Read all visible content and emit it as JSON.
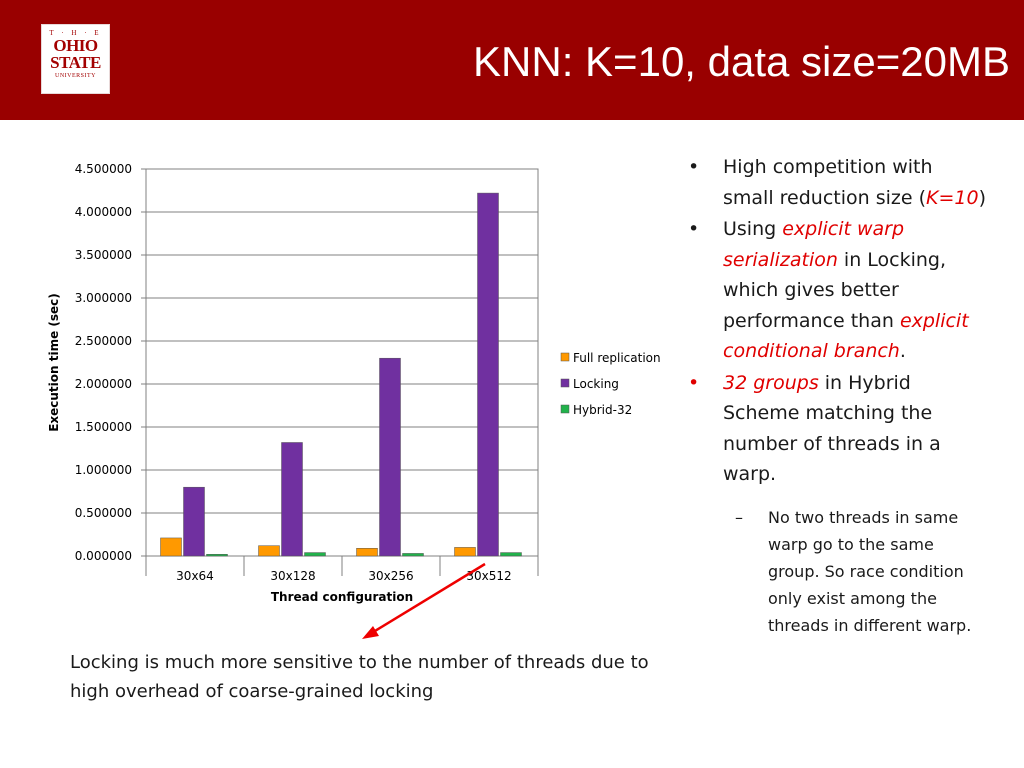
{
  "header": {
    "logo": {
      "line1": "T · H · E",
      "line2": "OHIO",
      "line3": "STATE",
      "line4": "UNIVERSITY"
    },
    "title": "KNN: K=10, data size=20MB"
  },
  "colors": {
    "header_bg": "#990000",
    "full_replication": "#ff9900",
    "locking": "#7030a0",
    "hybrid": "#21b24b",
    "accent_red": "#e00000"
  },
  "chart_data": {
    "type": "bar",
    "categories": [
      "30x64",
      "30x128",
      "30x256",
      "30x512"
    ],
    "series": [
      {
        "name": "Full replication",
        "values": [
          0.21,
          0.12,
          0.09,
          0.1
        ]
      },
      {
        "name": "Locking",
        "values": [
          0.8,
          1.32,
          2.3,
          4.22
        ]
      },
      {
        "name": "Hybrid-32",
        "values": [
          0.02,
          0.04,
          0.03,
          0.04
        ]
      }
    ],
    "xlabel": "Thread configuration",
    "ylabel": "Execution time (sec)",
    "ylim": [
      0,
      4.5
    ],
    "y_ticks": [
      "0.000000",
      "0.500000",
      "1.000000",
      "1.500000",
      "2.000000",
      "2.500000",
      "3.000000",
      "3.500000",
      "4.000000",
      "4.500000"
    ],
    "grid": true,
    "legend_position": "right"
  },
  "bullets": {
    "b1": {
      "text": "High competition with small reduction size (",
      "em": "K=10",
      "end": ")"
    },
    "b2": {
      "t1": "Using ",
      "e1": "explicit warp serialization",
      "t2": " in Locking, which gives better performance than ",
      "e2": "explicit conditional branch",
      "t3": "."
    },
    "b3": {
      "em": "32 groups",
      "text": " in Hybrid Scheme matching the number of threads in a warp."
    },
    "sub1": {
      "text": "No two threads in same warp go to the same group. So race condition only exist among the threads in different warp."
    }
  },
  "annotation": "Locking is much more sensitive to the number of threads due to high overhead of coarse-grained locking"
}
